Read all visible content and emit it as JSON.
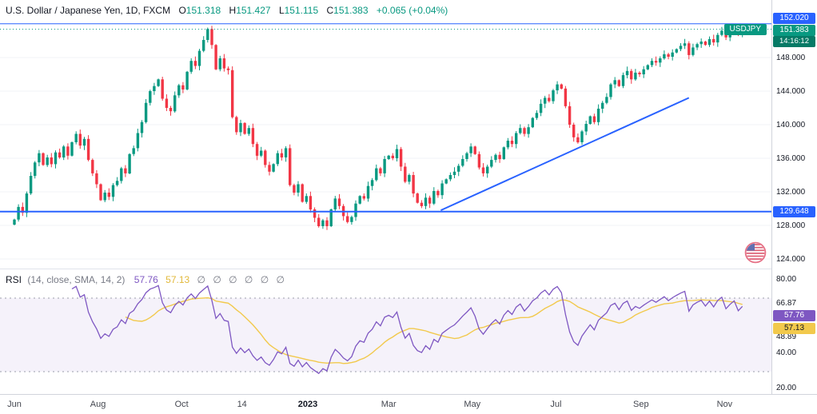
{
  "header": {
    "symbol_title": "U.S. Dollar / Japanese Yen, 1D, FXCM",
    "ohlc": [
      {
        "label": "O",
        "value": "151.318"
      },
      {
        "label": "H",
        "value": "151.427"
      },
      {
        "label": "L",
        "value": "151.115"
      },
      {
        "label": "C",
        "value": "151.383"
      }
    ],
    "change": "+0.065 (+0.04%)",
    "up_color": "#089981",
    "down_color": "#f23645"
  },
  "symbol_badge": {
    "text": "USDJPY"
  },
  "price_axis": {
    "labels": [
      {
        "text": "148.000",
        "price": 148
      },
      {
        "text": "144.000",
        "price": 144
      },
      {
        "text": "140.000",
        "price": 140
      },
      {
        "text": "136.000",
        "price": 136
      },
      {
        "text": "132.000",
        "price": 132
      },
      {
        "text": "128.000",
        "price": 128
      },
      {
        "text": "124.000",
        "price": 124
      }
    ],
    "badges": {
      "high_line": {
        "text": "152.020",
        "price": 152.02
      },
      "last": {
        "text": "151.383",
        "price": 151.383,
        "countdown": "14:16:12"
      },
      "support": {
        "text": "129.648",
        "price": 129.648
      }
    }
  },
  "time_axis": {
    "labels": [
      {
        "text": "Jun",
        "day": 0
      },
      {
        "text": "Aug",
        "day": 61
      },
      {
        "text": "Oct",
        "day": 122
      },
      {
        "text": "14",
        "day": 166
      },
      {
        "text": "2023",
        "day": 214,
        "major": true
      },
      {
        "text": "Mar",
        "day": 273
      },
      {
        "text": "May",
        "day": 334
      },
      {
        "text": "Jul",
        "day": 395
      },
      {
        "text": "Sep",
        "day": 457
      },
      {
        "text": "Nov",
        "day": 518
      }
    ]
  },
  "chart_data": {
    "type": "candlestick",
    "symbol": "USDJPY",
    "interval": "1D",
    "exchange": "FXCM",
    "start_date": "2022-06-01",
    "days_per_point": 3,
    "ylim": [
      123.5,
      153.5
    ],
    "closes": [
      128.7,
      130.2,
      129.5,
      131.8,
      133.9,
      135.5,
      136.6,
      135.2,
      136.1,
      135.3,
      136.7,
      136.1,
      137.4,
      136.3,
      137.9,
      138.9,
      137.5,
      138.3,
      135.8,
      134.2,
      132.9,
      131.0,
      131.9,
      131.4,
      132.8,
      133.3,
      134.8,
      134.2,
      136.5,
      137.2,
      139.0,
      140.3,
      142.6,
      144.0,
      144.6,
      145.4,
      143.1,
      142.0,
      141.6,
      143.5,
      144.7,
      144.2,
      146.3,
      147.6,
      147.0,
      148.8,
      150.1,
      151.4,
      149.5,
      146.6,
      147.9,
      146.7,
      146.5,
      140.9,
      139.1,
      140.2,
      138.9,
      139.6,
      137.7,
      136.3,
      136.9,
      135.2,
      134.4,
      135.3,
      136.6,
      136.1,
      137.2,
      132.8,
      131.9,
      132.9,
      130.8,
      131.5,
      129.9,
      128.9,
      127.9,
      128.6,
      127.9,
      129.9,
      131.2,
      130.3,
      129.1,
      128.4,
      129.0,
      130.6,
      131.5,
      131.2,
      132.7,
      133.4,
      134.8,
      134.2,
      135.9,
      136.3,
      136.0,
      137.1,
      135.0,
      133.2,
      134.0,
      131.8,
      130.7,
      130.3,
      131.3,
      130.6,
      132.1,
      131.6,
      133.0,
      133.5,
      134.0,
      134.4,
      135.1,
      135.9,
      136.6,
      137.4,
      136.5,
      134.9,
      134.2,
      135.0,
      135.8,
      136.4,
      135.9,
      137.3,
      138.1,
      137.7,
      139.0,
      139.6,
      138.9,
      139.7,
      140.8,
      141.4,
      142.5,
      143.2,
      142.8,
      144.1,
      144.8,
      144.3,
      142.2,
      140.0,
      138.5,
      137.9,
      139.2,
      140.1,
      141.0,
      140.3,
      141.9,
      142.6,
      143.3,
      144.8,
      145.3,
      144.6,
      145.9,
      146.4,
      145.4,
      146.2,
      146.0,
      146.6,
      147.1,
      147.6,
      147.4,
      147.9,
      148.4,
      148.1,
      148.6,
      149.0,
      149.4,
      149.7,
      148.3,
      149.2,
      149.6,
      149.9,
      149.5,
      150.2,
      149.8,
      150.7,
      151.2,
      150.4,
      151.0,
      151.5,
      150.8,
      151.38
    ],
    "colors": {
      "up": "#089981",
      "down": "#f23645",
      "line_blue": "#2962ff",
      "last_price": "#089981"
    },
    "lines": {
      "horizontal": [
        {
          "price": 152.02,
          "label": "152.020",
          "width": 1
        },
        {
          "price": 129.648,
          "label": "129.648",
          "width": 2
        }
      ],
      "last_price": 151.383,
      "trendline": {
        "day1": 311,
        "price1": 129.8,
        "day2": 492,
        "price2": 143.2
      }
    }
  },
  "rsi": {
    "title": "RSI",
    "params": "(14, close, SMA, 14, 2)",
    "rsi_value": "57.76",
    "sma_value": "57.13",
    "empty_values": [
      "∅",
      "∅",
      "∅",
      "∅",
      "∅",
      "∅"
    ],
    "axis_labels": [
      {
        "text": "80.00",
        "value": 80
      },
      {
        "text": "66.87",
        "value": 66.87
      },
      {
        "text": "48.89",
        "value": 48.89
      },
      {
        "text": "40.00",
        "value": 40
      },
      {
        "text": "20.00",
        "value": 20
      }
    ],
    "band": [
      30,
      70
    ],
    "period": 14,
    "sma_period": 14,
    "colors": {
      "rsi": "#7e57c2",
      "sma": "#f2c94c",
      "band": "rgba(126,87,194,0.08)"
    }
  }
}
